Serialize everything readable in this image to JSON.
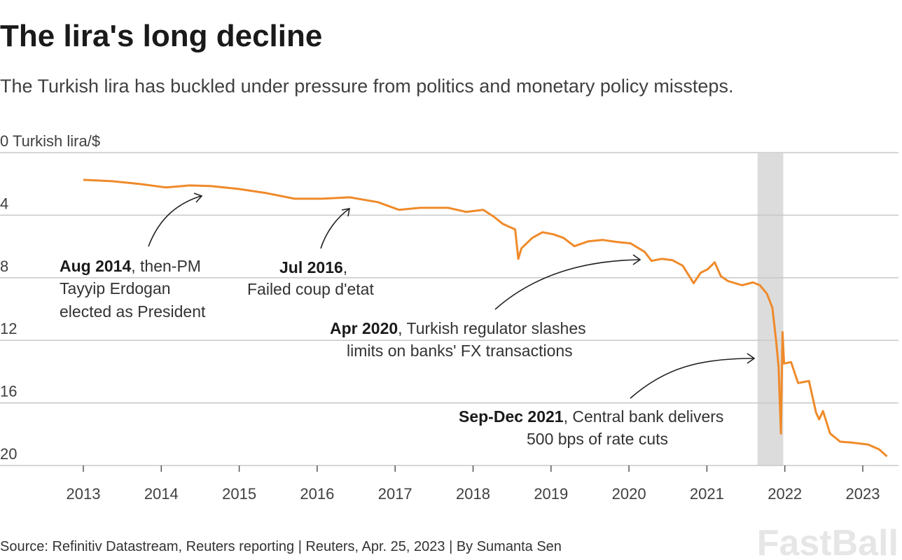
{
  "title": "The lira's long decline",
  "subtitle": "The Turkish lira has buckled under pressure from politics and monetary policy missteps.",
  "source": "Source: Refinitiv Datastream, Reuters reporting | Reuters, Apr. 25, 2023 | By Sumanta Sen",
  "watermark": "FastBall",
  "colors": {
    "line": "#ef8a2a",
    "band": "#dcdcdc",
    "grid": "#c8c8c8"
  },
  "chart_data": {
    "type": "line",
    "title": "The lira's long decline",
    "ylabel": "Turkish lira/$",
    "y_inverted": true,
    "ylim": [
      0,
      20
    ],
    "xlim": [
      2012.5,
      2023.5
    ],
    "yticks": [
      "0",
      "4",
      "8",
      "12",
      "16",
      "20"
    ],
    "xticks": [
      "2013",
      "2014",
      "2015",
      "2016",
      "2017",
      "2018",
      "2019",
      "2020",
      "2021",
      "2022",
      "2023"
    ],
    "grid": true,
    "shaded_band": {
      "from": 2021.65,
      "to": 2021.98,
      "label": "Sep-Dec 2021"
    },
    "x": [
      2013.0,
      2013.37,
      2013.73,
      2014.06,
      2014.36,
      2014.63,
      2014.99,
      2015.35,
      2015.71,
      2016.06,
      2016.42,
      2016.78,
      2017.05,
      2017.32,
      2017.68,
      2017.91,
      2018.13,
      2018.27,
      2018.38,
      2018.54,
      2018.58,
      2018.62,
      2018.76,
      2018.89,
      2019.03,
      2019.16,
      2019.3,
      2019.48,
      2019.66,
      2019.84,
      2020.02,
      2020.2,
      2020.29,
      2020.42,
      2020.56,
      2020.69,
      2020.83,
      2020.92,
      2021.01,
      2021.1,
      2021.18,
      2021.27,
      2021.45,
      2021.59,
      2021.68,
      2021.77,
      2021.84,
      2021.89,
      2021.92,
      2021.95,
      2021.97,
      2021.99,
      2022.08,
      2022.17,
      2022.31,
      2022.4,
      2022.44,
      2022.49,
      2022.58,
      2022.71,
      2022.85,
      2023.07,
      2023.21,
      2023.31
    ],
    "values": [
      1.74,
      1.83,
      2.01,
      2.23,
      2.1,
      2.14,
      2.32,
      2.59,
      2.95,
      2.95,
      2.86,
      3.17,
      3.66,
      3.53,
      3.53,
      3.79,
      3.66,
      4.11,
      4.55,
      4.91,
      6.79,
      6.12,
      5.45,
      5.09,
      5.22,
      5.45,
      5.98,
      5.67,
      5.58,
      5.71,
      5.8,
      6.34,
      6.92,
      6.79,
      6.88,
      7.23,
      8.35,
      7.68,
      7.46,
      7.01,
      7.9,
      8.21,
      8.48,
      8.3,
      8.48,
      9.02,
      9.91,
      12.14,
      13.71,
      17.95,
      11.47,
      13.48,
      13.39,
      14.73,
      14.6,
      16.61,
      17.05,
      16.52,
      17.95,
      18.48,
      18.53,
      18.66,
      18.97,
      19.42
    ],
    "annotations": [
      {
        "bold": "Aug 2014",
        "text": ", then-PM",
        "line2": "Tayyip Erdogan",
        "line3": "elected as President"
      },
      {
        "bold": "Jul 2016",
        "text": ",",
        "line2": "Failed coup d'etat"
      },
      {
        "bold": "Apr 2020",
        "text": ", Turkish regulator slashes",
        "line2": "limits on banks' FX transactions"
      },
      {
        "bold": "Sep-Dec 2021",
        "text": ", Central bank delivers",
        "line2": "500 bps of rate cuts"
      }
    ]
  }
}
